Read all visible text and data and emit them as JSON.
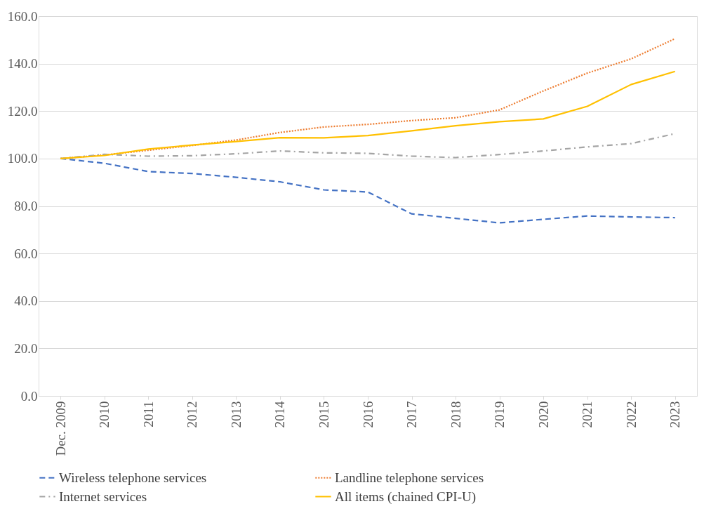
{
  "chart_data": {
    "type": "line",
    "categories": [
      "Dec. 2009",
      "2010",
      "2011",
      "2012",
      "2013",
      "2014",
      "2015",
      "2016",
      "2017",
      "2018",
      "2019",
      "2020",
      "2021",
      "2022",
      "2023"
    ],
    "series": [
      {
        "name": "Wireless telephone services",
        "color": "#4472c4",
        "line_style": "dashed",
        "values": [
          100,
          98,
          94.5,
          93.7,
          92.1,
          90.2,
          86.8,
          85.9,
          76.7,
          74.8,
          72.9,
          74.4,
          75.8,
          75.4,
          75.1
        ]
      },
      {
        "name": "Landline telephone services",
        "color": "#ed7d31",
        "line_style": "dotted",
        "values": [
          100,
          101.5,
          103.5,
          105.5,
          107.8,
          111,
          113.3,
          114.4,
          116,
          117.2,
          120.5,
          128.5,
          136,
          142,
          150.5
        ]
      },
      {
        "name": "Internet services",
        "color": "#a5a5a5",
        "line_style": "dashdot",
        "values": [
          100,
          101.8,
          101,
          101.2,
          102,
          103.2,
          102.4,
          102.2,
          101,
          100.4,
          101.7,
          103.2,
          104.9,
          106.3,
          110.5
        ]
      },
      {
        "name": "All items (chained CPI-U)",
        "color": "#ffc000",
        "line_style": "solid",
        "values": [
          100,
          101.3,
          104,
          105.7,
          107.2,
          108.8,
          108.7,
          109.7,
          111.7,
          113.8,
          115.5,
          116.7,
          122,
          131.2,
          136.7
        ]
      }
    ],
    "ylim": [
      0,
      160
    ],
    "yticks": [
      {
        "value": 0,
        "label": "0.0"
      },
      {
        "value": 20,
        "label": "20.0"
      },
      {
        "value": 40,
        "label": "40.0"
      },
      {
        "value": 60,
        "label": "60.0"
      },
      {
        "value": 80,
        "label": "80.0"
      },
      {
        "value": 100,
        "label": "100.0"
      },
      {
        "value": 120,
        "label": "120.0"
      },
      {
        "value": 140,
        "label": "140.0"
      },
      {
        "value": 160,
        "label": "160.0"
      }
    ],
    "grid": "y",
    "legend": "bottom",
    "marker": "none"
  }
}
